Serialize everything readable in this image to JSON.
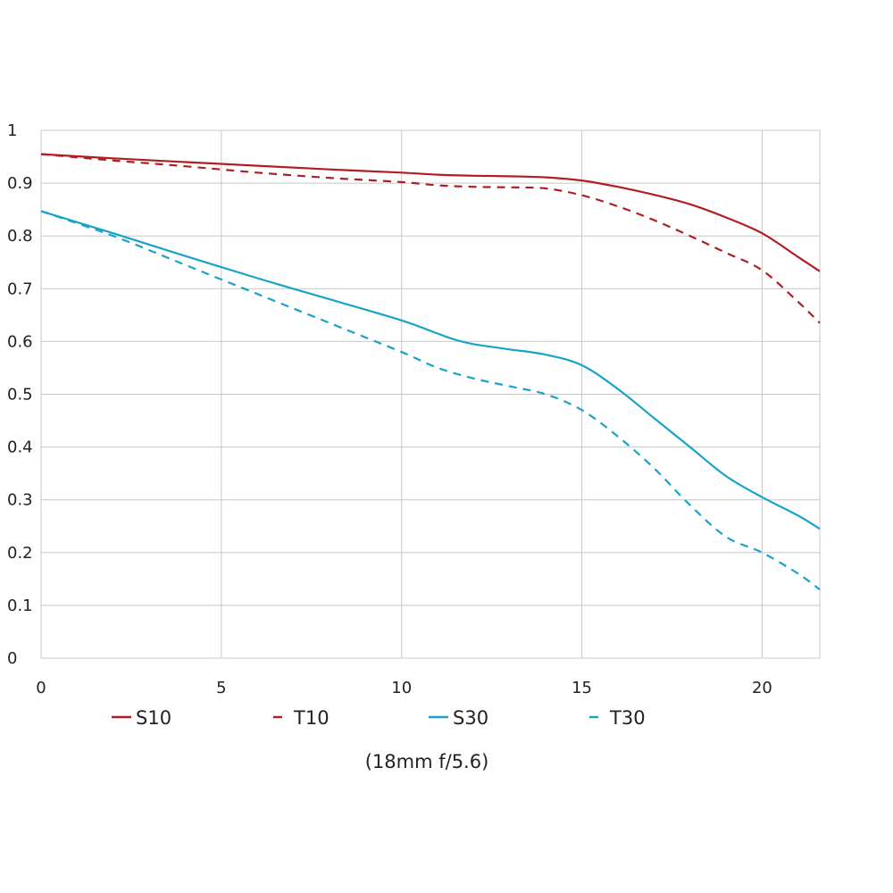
{
  "chart_data": {
    "type": "line",
    "caption": "(18mm f/5.6)",
    "xlim": [
      0,
      21.6
    ],
    "ylim": [
      0,
      1
    ],
    "x_ticks": [
      "0",
      "5",
      "10",
      "15",
      "20"
    ],
    "y_ticks": [
      "0",
      "0.1",
      "0.2",
      "0.3",
      "0.4",
      "0.5",
      "0.6",
      "0.7",
      "0.8",
      "0.9",
      "1"
    ],
    "grid": true,
    "legend_position": "bottom",
    "series": [
      {
        "name": "S10",
        "color": "#b01e24",
        "style": "solid",
        "x": [
          0,
          2,
          4,
          6,
          8,
          10,
          11,
          12,
          13,
          14,
          15,
          16,
          17,
          18,
          19,
          20,
          21,
          21.6
        ],
        "y": [
          0.955,
          0.947,
          0.94,
          0.933,
          0.926,
          0.92,
          0.916,
          0.914,
          0.913,
          0.911,
          0.905,
          0.893,
          0.878,
          0.86,
          0.835,
          0.805,
          0.76,
          0.733
        ]
      },
      {
        "name": "T10",
        "color": "#b01e24",
        "style": "dashed",
        "x": [
          0,
          2,
          4,
          6,
          8,
          10,
          11,
          12,
          13,
          14,
          15,
          16,
          17,
          18,
          19,
          20,
          21,
          21.6
        ],
        "y": [
          0.955,
          0.943,
          0.932,
          0.92,
          0.91,
          0.902,
          0.896,
          0.893,
          0.892,
          0.89,
          0.877,
          0.856,
          0.83,
          0.8,
          0.768,
          0.735,
          0.675,
          0.635
        ]
      },
      {
        "name": "S30",
        "color": "#1aa3c8",
        "style": "solid",
        "x": [
          0,
          2,
          4,
          6,
          8,
          10,
          11,
          11.5,
          12,
          13,
          14,
          15,
          16,
          17,
          18,
          19,
          20,
          21,
          21.6
        ],
        "y": [
          0.847,
          0.805,
          0.762,
          0.72,
          0.68,
          0.64,
          0.615,
          0.603,
          0.595,
          0.585,
          0.575,
          0.555,
          0.51,
          0.455,
          0.4,
          0.345,
          0.305,
          0.27,
          0.245
        ]
      },
      {
        "name": "T30",
        "color": "#1aa3c8",
        "style": "dashed",
        "x": [
          0,
          2,
          4,
          6,
          8,
          10,
          11,
          12,
          13,
          14,
          15,
          16,
          17,
          18,
          19,
          20,
          21,
          21.6
        ],
        "y": [
          0.847,
          0.8,
          0.745,
          0.69,
          0.635,
          0.58,
          0.55,
          0.53,
          0.515,
          0.5,
          0.47,
          0.42,
          0.36,
          0.29,
          0.23,
          0.2,
          0.16,
          0.13
        ]
      }
    ]
  }
}
